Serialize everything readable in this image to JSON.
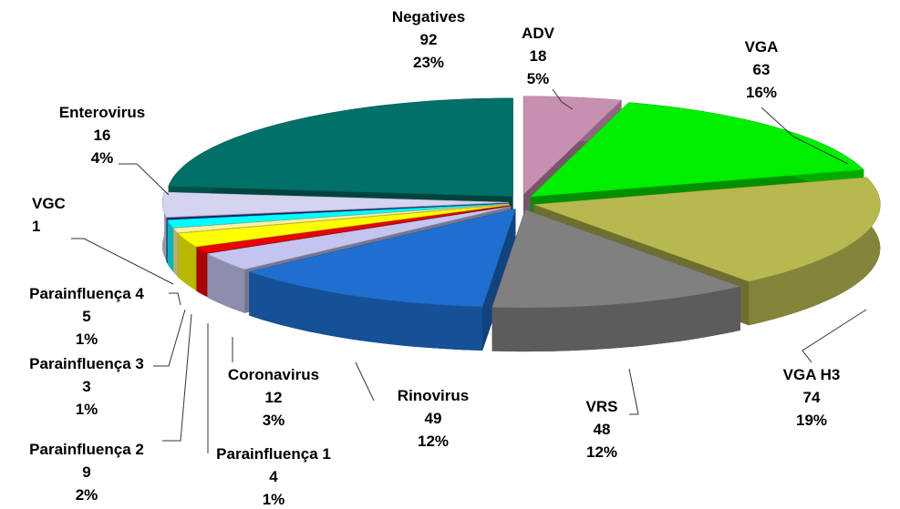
{
  "chart_data": {
    "type": "pie",
    "categories": [
      "ADV",
      "VGA",
      "VGA H3",
      "VRS",
      "Rinovirus",
      "Coronavirus",
      "Parainfluença 1",
      "Parainfluença 2",
      "Parainfluença 3",
      "Parainfluença 4",
      "VGC",
      "Enterovirus",
      "Negatives"
    ],
    "values": [
      18,
      63,
      74,
      48,
      49,
      12,
      4,
      9,
      3,
      5,
      1,
      16,
      92
    ],
    "percent_labels": [
      "5%",
      "16%",
      "19%",
      "12%",
      "12%",
      "3%",
      "1%",
      "2%",
      "1%",
      "1%",
      null,
      "4%",
      "23%"
    ],
    "colors": [
      "#c890b0",
      "#00ee00",
      "#b8b850",
      "#808080",
      "#1f6fd0",
      "#c4c4f0",
      "#ee0000",
      "#ffff00",
      "#fff0a0",
      "#00ffff",
      "#202080",
      "#d4d4f0",
      "#007068"
    ]
  }
}
